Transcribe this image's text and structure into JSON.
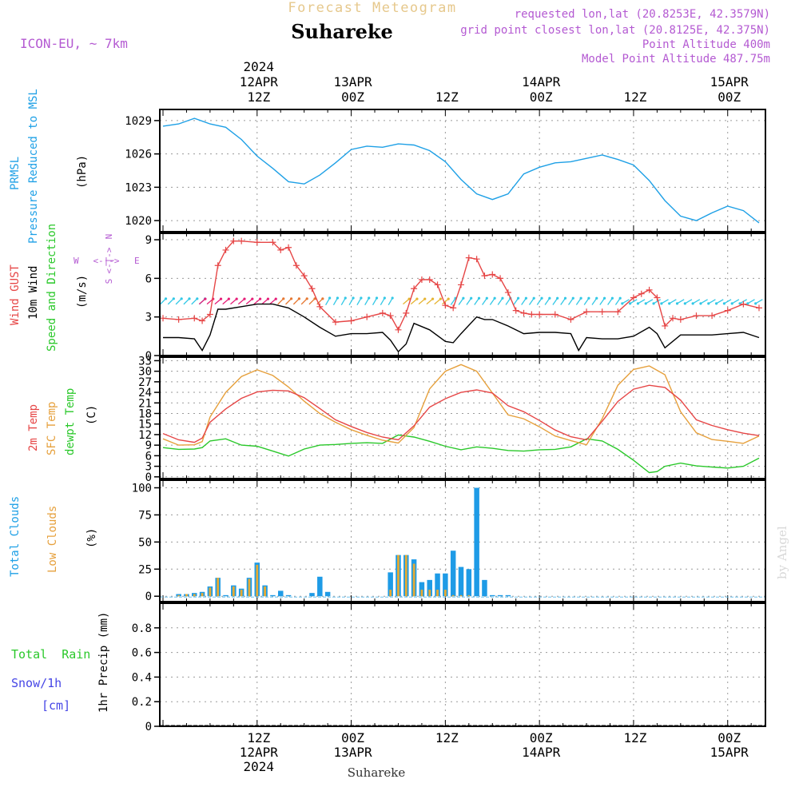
{
  "header": {
    "super_title": "Forecast Meteogram",
    "station": "Suhareke",
    "model": "ICON-EU, ~ 7km",
    "requested": "requested lon,lat (20.8253E, 42.3579N)",
    "grid_point": "grid point closest lon,lat (20.8125E, 42.375N)",
    "point_altitude": "Point Altitude 400m",
    "model_altitude": "Model Point Altitude 487.75m"
  },
  "footer": {
    "station": "Suhareke",
    "watermark": "by Angel"
  },
  "time_axis": {
    "top_labels": [
      {
        "t": 12,
        "lines": [
          "2024",
          "12APR",
          "12Z"
        ]
      },
      {
        "t": 24,
        "lines": [
          "13APR",
          "00Z"
        ]
      },
      {
        "t": 36,
        "lines": [
          "12Z"
        ]
      },
      {
        "t": 48,
        "lines": [
          "14APR",
          "00Z"
        ]
      },
      {
        "t": 60,
        "lines": [
          "12Z"
        ]
      },
      {
        "t": 72,
        "lines": [
          "15APR",
          "00Z"
        ]
      }
    ],
    "bottom_labels": [
      {
        "t": 12,
        "lines": [
          "12Z",
          "12APR",
          "2024"
        ]
      },
      {
        "t": 24,
        "lines": [
          "00Z",
          "13APR"
        ]
      },
      {
        "t": 36,
        "lines": [
          "12Z"
        ]
      },
      {
        "t": 48,
        "lines": [
          "00Z",
          "14APR"
        ]
      },
      {
        "t": 60,
        "lines": [
          "12Z"
        ]
      },
      {
        "t": 72,
        "lines": [
          "00Z",
          "15APR"
        ]
      }
    ]
  },
  "panels": {
    "pressure": {
      "labels": [
        "PRMSL",
        "Pressure Reduced to MSL"
      ],
      "unit": "(hPa)"
    },
    "wind": {
      "labels": [
        "Wind GUST",
        "10m Wind",
        "Speed and Direction"
      ],
      "unit": "(m/s)",
      "compass": {
        "n": "N",
        "s": "S",
        "w": "W",
        "e": "E",
        "arrows": "<-|->"
      }
    },
    "temp": {
      "labels": [
        "2m Temp",
        "SFC Temp",
        "dewpt Temp"
      ],
      "unit": "(C)"
    },
    "cloud": {
      "labels": [
        "Total Clouds",
        "Low Clouds"
      ],
      "unit": "(%)"
    },
    "precip": {
      "labels": [
        "Total  Rain",
        "Snow/1h",
        "[cm]"
      ],
      "unit": "1hr Precip (mm)"
    }
  },
  "colors": {
    "pressure": "#1ea0e6",
    "gust": "#e64646",
    "wind": "#000000",
    "t2m": "#e64646",
    "sfc": "#e6a03c",
    "dewpt": "#2ac82a",
    "total_cloud": "#1e9be6",
    "low_cloud": "#e6aa32",
    "title_gold": "#e6c88c",
    "meta_purple": "#b45ad2",
    "rain": "#2ac82a",
    "snow": "#4646e6",
    "compass": "#b45ad2"
  },
  "chart_data": [
    {
      "type": "line",
      "title": "PRMSL Pressure Reduced to MSL",
      "ylabel": "(hPa)",
      "x_unit": "hours from 11APR 23Z",
      "ylim": [
        1019,
        1030
      ],
      "yticks": [
        1020,
        1023,
        1026,
        1029
      ],
      "series": [
        {
          "name": "PRMSL",
          "x": [
            0,
            2,
            4,
            6,
            8,
            10,
            12,
            14,
            16,
            18,
            20,
            22,
            24,
            26,
            28,
            30,
            32,
            34,
            36,
            38,
            40,
            42,
            44,
            46,
            48,
            50,
            52,
            54,
            56,
            58,
            60,
            62,
            64,
            66,
            68,
            70,
            72,
            74,
            76
          ],
          "values": [
            1028.5,
            1028.7,
            1029.2,
            1028.7,
            1028.4,
            1027.3,
            1025.8,
            1024.7,
            1023.5,
            1023.3,
            1024.1,
            1025.2,
            1026.4,
            1026.7,
            1026.6,
            1026.9,
            1026.8,
            1026.3,
            1025.3,
            1023.7,
            1022.4,
            1021.9,
            1022.4,
            1024.2,
            1024.8,
            1025.2,
            1025.3,
            1025.6,
            1025.9,
            1025.5,
            1025.0,
            1023.6,
            1021.8,
            1020.4,
            1020.0,
            1020.7,
            1021.3,
            1020.9,
            1019.8
          ]
        }
      ]
    },
    {
      "type": "line",
      "title": "Wind GUST / 10m Wind",
      "ylabel": "(m/s)",
      "ylim": [
        0,
        9.5
      ],
      "yticks": [
        0,
        3,
        6,
        9
      ],
      "series": [
        {
          "name": "Wind GUST",
          "x": [
            0,
            2,
            4,
            5,
            6,
            7,
            8,
            9,
            10,
            12,
            14,
            15,
            16,
            17,
            18,
            19,
            20,
            22,
            24,
            26,
            28,
            29,
            30,
            31,
            32,
            33,
            34,
            35,
            36,
            37,
            38,
            39,
            40,
            41,
            42,
            43,
            44,
            45,
            46,
            47,
            48,
            50,
            52,
            54,
            56,
            58,
            60,
            61,
            62,
            63,
            64,
            65,
            66,
            68,
            70,
            72,
            74,
            76
          ],
          "values": [
            2.9,
            2.8,
            2.9,
            2.7,
            3.2,
            7.0,
            8.2,
            8.9,
            8.9,
            8.8,
            8.8,
            8.2,
            8.4,
            7.0,
            6.2,
            5.2,
            3.8,
            2.6,
            2.7,
            3.0,
            3.3,
            3.1,
            2.0,
            3.3,
            5.2,
            5.9,
            5.9,
            5.5,
            3.9,
            3.7,
            5.5,
            7.6,
            7.5,
            6.2,
            6.3,
            6.0,
            4.9,
            3.5,
            3.3,
            3.2,
            3.2,
            3.2,
            2.8,
            3.4,
            3.4,
            3.4,
            4.5,
            4.8,
            5.1,
            4.5,
            2.3,
            2.9,
            2.8,
            3.1,
            3.1,
            3.5,
            4.0,
            3.7
          ]
        },
        {
          "name": "10m Wind",
          "x": [
            0,
            2,
            4,
            5,
            6,
            7,
            8,
            10,
            12,
            14,
            16,
            18,
            20,
            22,
            24,
            26,
            28,
            29,
            30,
            31,
            32,
            34,
            36,
            37,
            38,
            40,
            41,
            42,
            44,
            46,
            48,
            50,
            52,
            53,
            54,
            56,
            58,
            60,
            62,
            63,
            64,
            66,
            68,
            70,
            72,
            74,
            76
          ],
          "values": [
            1.4,
            1.4,
            1.3,
            0.4,
            1.6,
            3.6,
            3.6,
            3.8,
            4.0,
            4.0,
            3.7,
            3.0,
            2.2,
            1.5,
            1.7,
            1.7,
            1.8,
            1.2,
            0.3,
            0.9,
            2.5,
            2.0,
            1.1,
            1.0,
            1.7,
            3.0,
            2.8,
            2.8,
            2.3,
            1.7,
            1.8,
            1.8,
            1.7,
            0.4,
            1.4,
            1.3,
            1.3,
            1.5,
            2.2,
            1.7,
            0.6,
            1.6,
            1.6,
            1.6,
            1.7,
            1.8,
            1.4
          ]
        }
      ],
      "wind_barbs": [
        {
          "x": [
            0,
            1,
            2,
            3,
            4,
            5
          ],
          "color": "#32c8e6",
          "dir": 225
        },
        {
          "x": [
            5,
            6,
            7,
            8,
            9,
            10,
            11,
            12,
            13,
            14
          ],
          "color": "#e61e78",
          "dir": 230
        },
        {
          "x": [
            15,
            16,
            17,
            18,
            19,
            20
          ],
          "color": "#e67832",
          "dir": 225
        },
        {
          "x": [
            21,
            22,
            23,
            24,
            25,
            26,
            27,
            28,
            29
          ],
          "color": "#32c8e6",
          "dir": 210
        },
        {
          "x": [
            31,
            32,
            33,
            34,
            35,
            36
          ],
          "color": "#e6b432",
          "dir": 230
        },
        {
          "x": [
            37,
            38,
            39,
            40,
            41,
            42,
            43,
            44,
            45,
            46,
            47,
            48,
            49,
            50,
            51,
            52,
            53,
            54,
            55,
            56,
            57,
            58
          ],
          "color": "#32c8e6",
          "dir": 215
        },
        {
          "x": [
            59,
            60,
            61,
            62,
            63,
            64,
            65,
            66,
            67,
            68,
            69,
            70,
            71,
            72,
            73,
            74,
            75,
            76
          ],
          "color": "#32c8e6",
          "dir": 60
        }
      ]
    },
    {
      "type": "line",
      "title": "2m Temp / SFC Temp / dewpt Temp",
      "ylabel": "(C)",
      "ylim": [
        -0.5,
        34
      ],
      "yticks": [
        0,
        3,
        6,
        9,
        12,
        15,
        18,
        21,
        24,
        27,
        30,
        33
      ],
      "series": [
        {
          "name": "2m Temp",
          "x": [
            0,
            2,
            4,
            5,
            6,
            8,
            10,
            12,
            14,
            16,
            18,
            20,
            22,
            24,
            26,
            28,
            30,
            32,
            34,
            36,
            38,
            40,
            42,
            44,
            46,
            48,
            50,
            52,
            54,
            56,
            58,
            60,
            62,
            64,
            66,
            68,
            70,
            72,
            74,
            76
          ],
          "values": [
            12.3,
            10.5,
            9.8,
            11.0,
            15.5,
            19.3,
            22.3,
            24.1,
            24.6,
            24.4,
            22.5,
            19.4,
            16.2,
            14.3,
            12.6,
            11.3,
            10.5,
            14.5,
            19.8,
            22.2,
            24.0,
            24.7,
            23.8,
            20.2,
            18.5,
            16.0,
            13.3,
            11.4,
            10.5,
            15.8,
            21.4,
            24.9,
            26.0,
            25.4,
            21.8,
            16.2,
            14.6,
            13.4,
            12.4,
            11.7
          ]
        },
        {
          "name": "SFC Temp",
          "x": [
            0,
            2,
            4,
            5,
            6,
            8,
            10,
            12,
            14,
            16,
            18,
            20,
            22,
            24,
            26,
            28,
            30,
            32,
            34,
            36,
            38,
            40,
            42,
            44,
            46,
            48,
            50,
            52,
            54,
            56,
            58,
            60,
            62,
            64,
            66,
            68,
            70,
            72,
            74,
            76
          ],
          "values": [
            10.8,
            9.0,
            9.1,
            10.0,
            17.0,
            24.0,
            28.5,
            30.4,
            28.8,
            25.5,
            21.5,
            18.0,
            15.5,
            13.4,
            11.8,
            10.4,
            9.6,
            14.0,
            25.0,
            30.0,
            31.9,
            30.0,
            23.8,
            17.6,
            16.5,
            14.2,
            11.6,
            10.3,
            9.1,
            16.5,
            26.0,
            30.5,
            31.5,
            29.0,
            18.5,
            12.5,
            10.6,
            10.1,
            9.5,
            11.6
          ]
        },
        {
          "name": "dewpt Temp",
          "x": [
            0,
            2,
            4,
            5,
            6,
            8,
            10,
            12,
            14,
            16,
            18,
            20,
            22,
            24,
            26,
            28,
            30,
            32,
            34,
            36,
            38,
            40,
            42,
            44,
            46,
            48,
            50,
            52,
            54,
            56,
            58,
            60,
            62,
            63,
            64,
            66,
            68,
            70,
            72,
            74,
            76
          ],
          "values": [
            8.3,
            7.8,
            7.9,
            8.3,
            10.2,
            10.8,
            9.0,
            8.7,
            7.3,
            5.9,
            7.9,
            9.0,
            9.2,
            9.5,
            9.7,
            9.5,
            11.9,
            11.3,
            10.1,
            8.7,
            7.7,
            8.5,
            8.1,
            7.5,
            7.3,
            7.7,
            7.8,
            8.5,
            10.8,
            10.2,
            7.8,
            4.7,
            1.2,
            1.5,
            3.0,
            3.9,
            3.1,
            2.8,
            2.5,
            3.0,
            5.3
          ]
        }
      ]
    },
    {
      "type": "bar",
      "title": "Total Clouds / Low Clouds",
      "ylabel": "(%)",
      "ylim": [
        -5,
        107
      ],
      "yticks": [
        0,
        25,
        50,
        75,
        100
      ],
      "x": [
        2,
        3,
        4,
        5,
        6,
        7,
        8,
        9,
        10,
        11,
        12,
        13,
        14,
        15,
        16,
        19,
        20,
        21,
        29,
        30,
        31,
        32,
        33,
        34,
        35,
        36,
        37,
        38,
        39,
        40,
        41,
        42,
        43,
        44
      ],
      "series": [
        {
          "name": "Total Clouds",
          "values": [
            2,
            2,
            3,
            4,
            9,
            17,
            1,
            10,
            7,
            17,
            31,
            10,
            1,
            5,
            1,
            3,
            18,
            4,
            22,
            38,
            38,
            34,
            13,
            15,
            21,
            21,
            42,
            27,
            25,
            100,
            15,
            1,
            1,
            1
          ]
        },
        {
          "name": "Low Clouds",
          "values": [
            1,
            2,
            2,
            3,
            8,
            17,
            0,
            9,
            6,
            16,
            29,
            9,
            0,
            0,
            0,
            0,
            0,
            0,
            6,
            38,
            38,
            30,
            6,
            6,
            6,
            6,
            1,
            1,
            1,
            0,
            0,
            0,
            0,
            0
          ]
        }
      ]
    },
    {
      "type": "line",
      "title": "1hr Precip (mm)",
      "ylabel": "1hr Precip (mm)",
      "ylim": [
        0,
        1.0
      ],
      "yticks": [
        0,
        0.2,
        0.4,
        0.6,
        0.8
      ],
      "series": [
        {
          "name": "Total Rain",
          "x": [
            0,
            76
          ],
          "values": [
            0,
            0
          ]
        }
      ]
    }
  ]
}
